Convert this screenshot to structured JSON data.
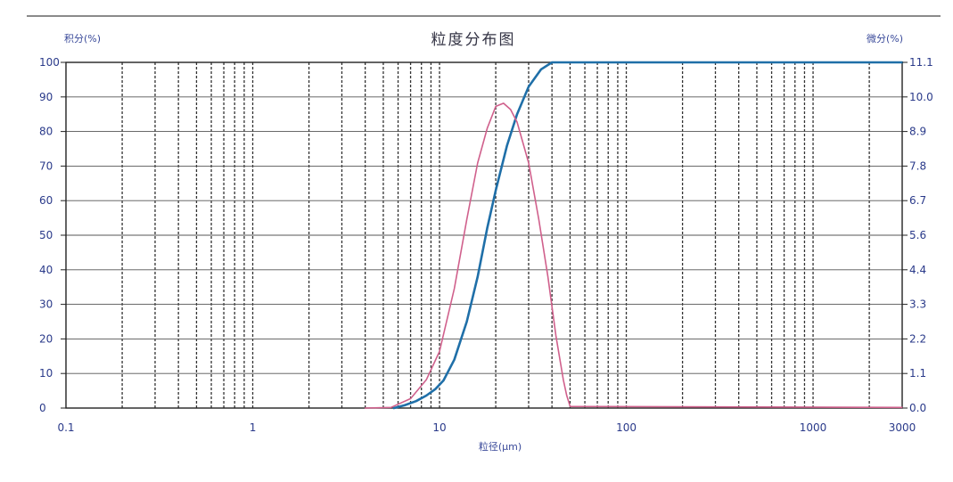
{
  "chart_data": {
    "type": "line",
    "title": "粒度分布图",
    "xlabel": "粒径(μm)",
    "ylabel_left": "积分(%)",
    "ylabel_right": "微分(%)",
    "x_scale": "log",
    "xlim": [
      0.1,
      3000
    ],
    "ylim_left": [
      0,
      100
    ],
    "ylim_right": [
      0,
      11
    ],
    "grid": true,
    "x_ticks": [
      {
        "value": 0.1,
        "label": "0.1"
      },
      {
        "value": 1,
        "label": "1"
      },
      {
        "value": 10,
        "label": "10"
      },
      {
        "value": 100,
        "label": "100"
      },
      {
        "value": 1000,
        "label": "1000"
      },
      {
        "value": 3000,
        "label": "3000"
      }
    ],
    "y_left_ticks": [
      "0",
      "10",
      "20",
      "30",
      "40",
      "50",
      "60",
      "70",
      "80",
      "90",
      "100"
    ],
    "y_right_ticks": [
      "0.0",
      "1.1",
      "2.2",
      "3.3",
      "4.4",
      "5.6",
      "6.7",
      "7.8",
      "8.9",
      "10.0",
      "11.1"
    ],
    "series": [
      {
        "axis": "left",
        "color": "#1f6fa8",
        "x": [
          5.7,
          6.5,
          7.5,
          8.5,
          9.5,
          10.5,
          12,
          14,
          16,
          18,
          20,
          23,
          26,
          30,
          35,
          40,
          45,
          100,
          3000
        ],
        "y": [
          0,
          0.8,
          2,
          3.6,
          5.5,
          8,
          14,
          25,
          38,
          52,
          63,
          76,
          85,
          93,
          98,
          100,
          100,
          100,
          100
        ]
      },
      {
        "axis": "right",
        "color": "#d0608c",
        "x": [
          4,
          5.5,
          7,
          8.5,
          10,
          12,
          14,
          16,
          18,
          20,
          22,
          24,
          26,
          30,
          34,
          38,
          42,
          46,
          48,
          50,
          3000
        ],
        "y": [
          0,
          0.02,
          0.3,
          0.9,
          1.8,
          3.8,
          6.0,
          7.8,
          8.9,
          9.6,
          9.7,
          9.5,
          9.1,
          7.8,
          6.0,
          4.2,
          2.3,
          0.9,
          0.4,
          0.05,
          0.02
        ]
      }
    ]
  }
}
